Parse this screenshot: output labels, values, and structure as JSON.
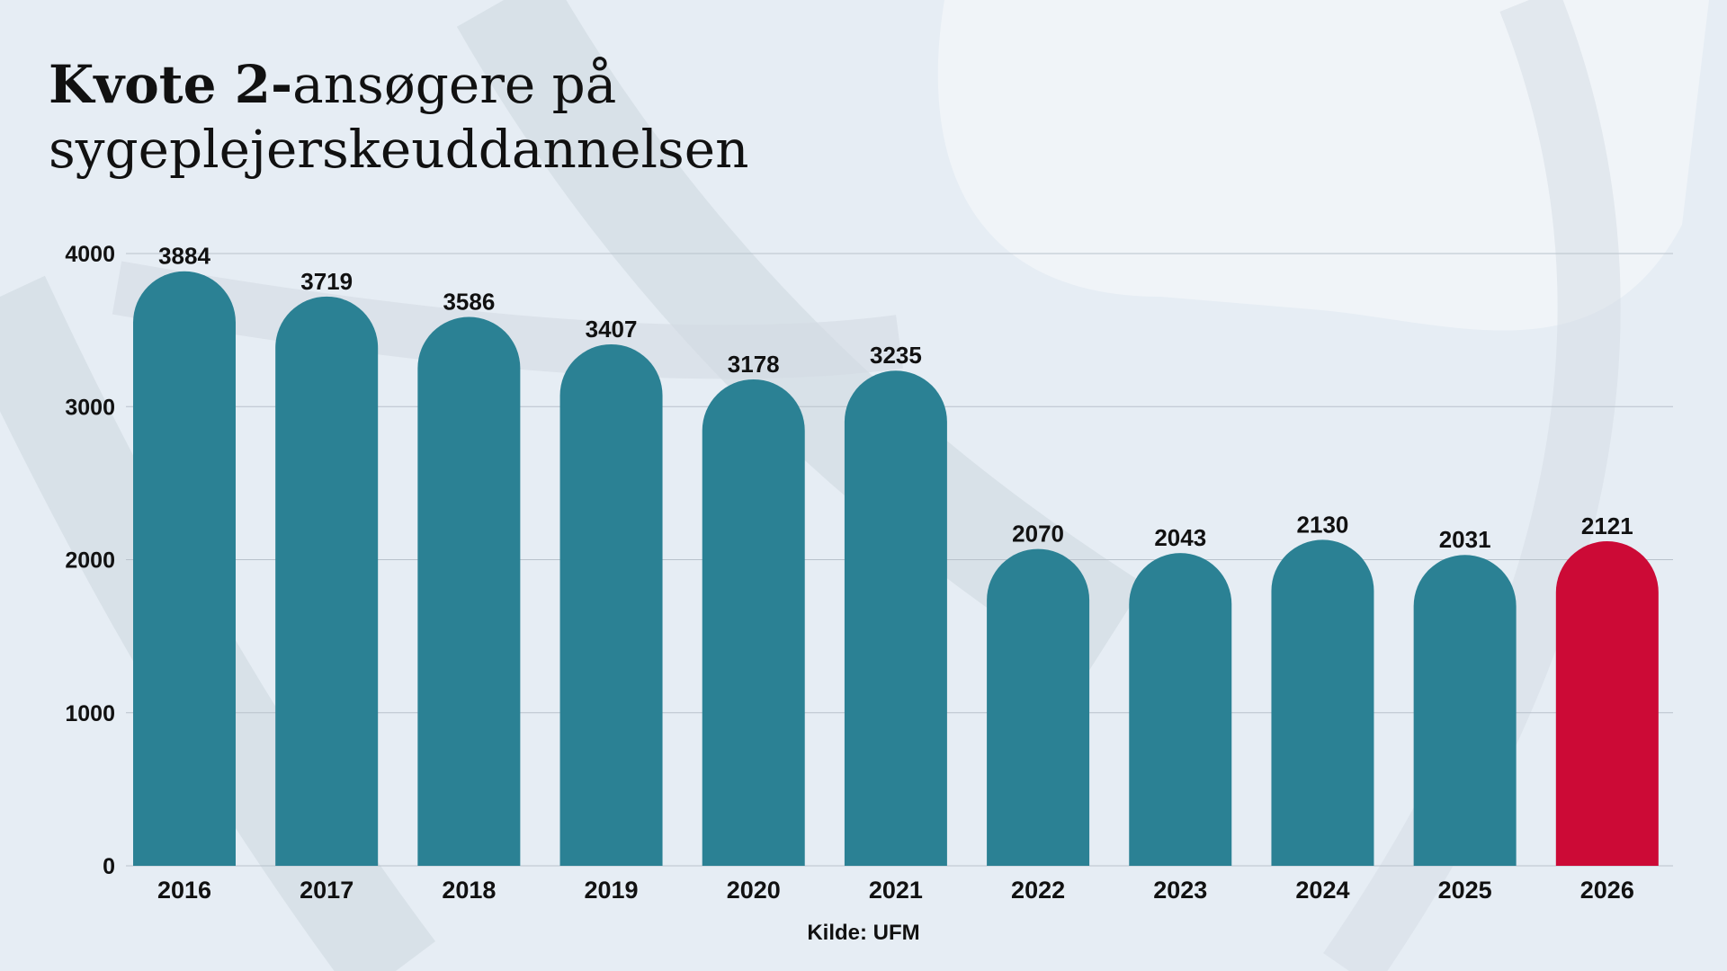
{
  "title": {
    "bold": "Kvote 2-",
    "rest_line1": "ansøgere på",
    "line2": "sygeplejerskeuddannelsen"
  },
  "source": "Kilde: UFM",
  "colors": {
    "bar": "#2b8194",
    "highlight": "#cc0a36",
    "grid": "#b9c2cb",
    "text": "#111111"
  },
  "chart_data": {
    "type": "bar",
    "categories": [
      "2016",
      "2017",
      "2018",
      "2019",
      "2020",
      "2021",
      "2022",
      "2023",
      "2024",
      "2025",
      "2026"
    ],
    "values": [
      3884,
      3719,
      3586,
      3407,
      3178,
      3235,
      2070,
      2043,
      2130,
      2031,
      2121
    ],
    "highlight_category": "2026",
    "ylim": [
      0,
      4000
    ],
    "yticks": [
      0,
      1000,
      2000,
      3000,
      4000
    ],
    "xlabel": "",
    "ylabel": "",
    "grid": true,
    "data_labels": true
  }
}
